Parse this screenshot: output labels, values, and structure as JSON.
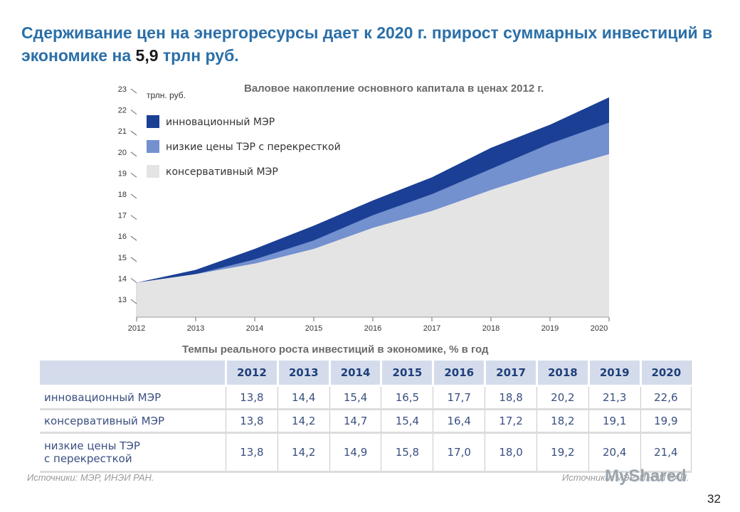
{
  "slide_title_part1": "Сдерживание цен на энергоресурсы дает к 2020 г. прирост суммарных инвестиций в экономике на ",
  "slide_title_highlight": "5,9",
  "slide_title_part2": " трлн руб.",
  "chart_data": {
    "type": "area",
    "title": "Валовое накопление основного капитала в ценах 2012 г.",
    "ylabel": "трлн. руб.",
    "x": [
      "2012",
      "2013",
      "2014",
      "2015",
      "2016",
      "2017",
      "2018",
      "2019",
      "2020"
    ],
    "ylim": [
      13,
      23
    ],
    "yticks": [
      "13",
      "14",
      "15",
      "16",
      "17",
      "18",
      "19",
      "20",
      "21",
      "22",
      "23"
    ],
    "series": [
      {
        "name": "консервативный МЭР",
        "color": "#e4e4e4",
        "values": [
          13.8,
          14.2,
          14.7,
          15.4,
          16.4,
          17.2,
          18.2,
          19.1,
          19.9
        ]
      },
      {
        "name": "низкие цены ТЭР с перекресткой",
        "color": "#7390cf",
        "values": [
          13.8,
          14.2,
          14.9,
          15.8,
          17.0,
          18.0,
          19.2,
          20.4,
          21.4
        ]
      },
      {
        "name": "инновационный МЭР",
        "color": "#1b3f94",
        "values": [
          13.8,
          14.4,
          15.4,
          16.5,
          17.7,
          18.8,
          20.2,
          21.3,
          22.6
        ]
      }
    ],
    "legend_order": [
      "инновационный МЭР",
      "низкие цены ТЭР с перекресткой",
      "консервативный МЭР"
    ],
    "legend_position": "top-left",
    "grid": false
  },
  "table": {
    "title": "Темпы реального роста инвестиций в экономике, % в год",
    "headers": [
      "2012",
      "2013",
      "2014",
      "2015",
      "2016",
      "2017",
      "2018",
      "2019",
      "2020"
    ],
    "rows": [
      {
        "label": "инновационный МЭР",
        "values": [
          "13,8",
          "14,4",
          "15,4",
          "16,5",
          "17,7",
          "18,8",
          "20,2",
          "21,3",
          "22,6"
        ]
      },
      {
        "label": "консервативный МЭР",
        "values": [
          "13,8",
          "14,2",
          "14,7",
          "15,4",
          "16,4",
          "17,2",
          "18,2",
          "19,1",
          "19,9"
        ]
      },
      {
        "label_line1": "низкие цены ТЭР",
        "label_line2": "с перекресткой",
        "values": [
          "13,8",
          "14,2",
          "14,9",
          "15,8",
          "17,0",
          "18,0",
          "19,2",
          "20,4",
          "21,4"
        ]
      }
    ]
  },
  "source_left": "Источники: МЭР, ИНЭИ РАН.",
  "source_right": "Источники: МЭР, ИНЭИ РАН.",
  "logo_text": "MyShared",
  "page_number": "32"
}
